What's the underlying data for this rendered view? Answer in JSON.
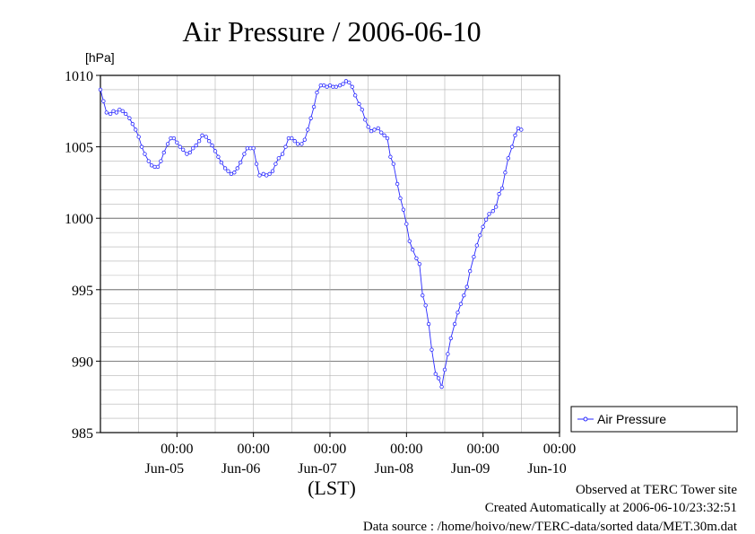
{
  "chart_data": {
    "type": "line",
    "title": "Air Pressure / 2006-06-10",
    "ylabel": "[hPa]",
    "xlabel": "(LST)",
    "ylim": [
      985,
      1010
    ],
    "yticks": [
      985,
      990,
      995,
      1000,
      1005,
      1010
    ],
    "xticks": [
      {
        "time": "00:00",
        "date": "Jun-05",
        "day": 5
      },
      {
        "time": "00:00",
        "date": "Jun-06",
        "day": 6
      },
      {
        "time": "00:00",
        "date": "Jun-07",
        "day": 7
      },
      {
        "time": "00:00",
        "date": "Jun-08",
        "day": 8
      },
      {
        "time": "00:00",
        "date": "Jun-09",
        "day": 9
      },
      {
        "time": "00:00",
        "date": "Jun-10",
        "day": 10
      }
    ],
    "xlim": [
      4,
      10
    ],
    "grid": true,
    "legend_position": "right",
    "series": [
      {
        "name": "Air Pressure",
        "color": "#2a2aff",
        "marker": "open-circle",
        "points": [
          [
            4.0,
            1009.0
          ],
          [
            4.04,
            1008.2
          ],
          [
            4.08,
            1007.4
          ],
          [
            4.13,
            1007.3
          ],
          [
            4.17,
            1007.5
          ],
          [
            4.21,
            1007.4
          ],
          [
            4.25,
            1007.6
          ],
          [
            4.29,
            1007.5
          ],
          [
            4.33,
            1007.3
          ],
          [
            4.38,
            1007.0
          ],
          [
            4.42,
            1006.6
          ],
          [
            4.46,
            1006.2
          ],
          [
            4.5,
            1005.7
          ],
          [
            4.54,
            1005.0
          ],
          [
            4.58,
            1004.5
          ],
          [
            4.63,
            1004.0
          ],
          [
            4.67,
            1003.7
          ],
          [
            4.71,
            1003.6
          ],
          [
            4.75,
            1003.6
          ],
          [
            4.79,
            1004.0
          ],
          [
            4.83,
            1004.6
          ],
          [
            4.88,
            1005.2
          ],
          [
            4.92,
            1005.6
          ],
          [
            4.96,
            1005.6
          ],
          [
            5.0,
            1005.3
          ],
          [
            5.04,
            1005.0
          ],
          [
            5.08,
            1004.8
          ],
          [
            5.13,
            1004.5
          ],
          [
            5.17,
            1004.6
          ],
          [
            5.21,
            1004.9
          ],
          [
            5.25,
            1005.1
          ],
          [
            5.29,
            1005.4
          ],
          [
            5.33,
            1005.8
          ],
          [
            5.38,
            1005.7
          ],
          [
            5.42,
            1005.4
          ],
          [
            5.46,
            1005.1
          ],
          [
            5.5,
            1004.7
          ],
          [
            5.54,
            1004.3
          ],
          [
            5.58,
            1003.9
          ],
          [
            5.63,
            1003.5
          ],
          [
            5.67,
            1003.3
          ],
          [
            5.71,
            1003.1
          ],
          [
            5.75,
            1003.2
          ],
          [
            5.79,
            1003.5
          ],
          [
            5.83,
            1003.9
          ],
          [
            5.88,
            1004.5
          ],
          [
            5.92,
            1004.9
          ],
          [
            5.96,
            1004.9
          ],
          [
            6.0,
            1004.9
          ],
          [
            6.04,
            1003.8
          ],
          [
            6.08,
            1003.0
          ],
          [
            6.13,
            1003.1
          ],
          [
            6.17,
            1003.0
          ],
          [
            6.21,
            1003.1
          ],
          [
            6.25,
            1003.3
          ],
          [
            6.29,
            1003.8
          ],
          [
            6.33,
            1004.2
          ],
          [
            6.38,
            1004.5
          ],
          [
            6.42,
            1005.0
          ],
          [
            6.46,
            1005.6
          ],
          [
            6.5,
            1005.6
          ],
          [
            6.54,
            1005.4
          ],
          [
            6.58,
            1005.2
          ],
          [
            6.63,
            1005.2
          ],
          [
            6.67,
            1005.5
          ],
          [
            6.71,
            1006.2
          ],
          [
            6.75,
            1007.0
          ],
          [
            6.79,
            1007.8
          ],
          [
            6.83,
            1008.8
          ],
          [
            6.88,
            1009.3
          ],
          [
            6.92,
            1009.3
          ],
          [
            6.96,
            1009.2
          ],
          [
            7.0,
            1009.3
          ],
          [
            7.04,
            1009.2
          ],
          [
            7.08,
            1009.2
          ],
          [
            7.13,
            1009.3
          ],
          [
            7.17,
            1009.4
          ],
          [
            7.21,
            1009.6
          ],
          [
            7.25,
            1009.5
          ],
          [
            7.29,
            1009.2
          ],
          [
            7.33,
            1008.6
          ],
          [
            7.38,
            1008.0
          ],
          [
            7.42,
            1007.6
          ],
          [
            7.46,
            1006.9
          ],
          [
            7.5,
            1006.4
          ],
          [
            7.54,
            1006.1
          ],
          [
            7.58,
            1006.2
          ],
          [
            7.63,
            1006.3
          ],
          [
            7.67,
            1006.0
          ],
          [
            7.71,
            1005.8
          ],
          [
            7.75,
            1005.6
          ],
          [
            7.79,
            1004.3
          ],
          [
            7.83,
            1003.8
          ],
          [
            7.88,
            1002.4
          ],
          [
            7.92,
            1001.4
          ],
          [
            7.96,
            1000.6
          ],
          [
            8.0,
            999.6
          ],
          [
            8.04,
            998.4
          ],
          [
            8.08,
            997.8
          ],
          [
            8.13,
            997.2
          ],
          [
            8.17,
            996.8
          ],
          [
            8.21,
            994.6
          ],
          [
            8.25,
            993.9
          ],
          [
            8.29,
            992.6
          ],
          [
            8.33,
            990.8
          ],
          [
            8.38,
            989.1
          ],
          [
            8.42,
            988.8
          ],
          [
            8.46,
            988.2
          ],
          [
            8.5,
            989.4
          ],
          [
            8.54,
            990.5
          ],
          [
            8.58,
            991.6
          ],
          [
            8.63,
            992.6
          ],
          [
            8.67,
            993.4
          ],
          [
            8.71,
            994.0
          ],
          [
            8.75,
            994.6
          ],
          [
            8.79,
            995.2
          ],
          [
            8.83,
            996.3
          ],
          [
            8.88,
            997.3
          ],
          [
            8.92,
            998.1
          ],
          [
            8.96,
            998.8
          ],
          [
            9.0,
            999.4
          ],
          [
            9.04,
            999.9
          ],
          [
            9.08,
            1000.3
          ],
          [
            9.13,
            1000.5
          ],
          [
            9.17,
            1000.8
          ],
          [
            9.21,
            1001.7
          ],
          [
            9.25,
            1002.1
          ],
          [
            9.29,
            1003.2
          ],
          [
            9.33,
            1004.2
          ],
          [
            9.38,
            1005.0
          ],
          [
            9.42,
            1005.8
          ],
          [
            9.46,
            1006.3
          ],
          [
            9.5,
            1006.2
          ]
        ]
      }
    ]
  },
  "footer": {
    "line1": "Observed at TERC Tower site",
    "line2": "Created Automatically at 2006-06-10/23:32:51",
    "line3": "Data source : /home/hoivo/new/TERC-data/sorted  data/MET.30m.dat"
  }
}
